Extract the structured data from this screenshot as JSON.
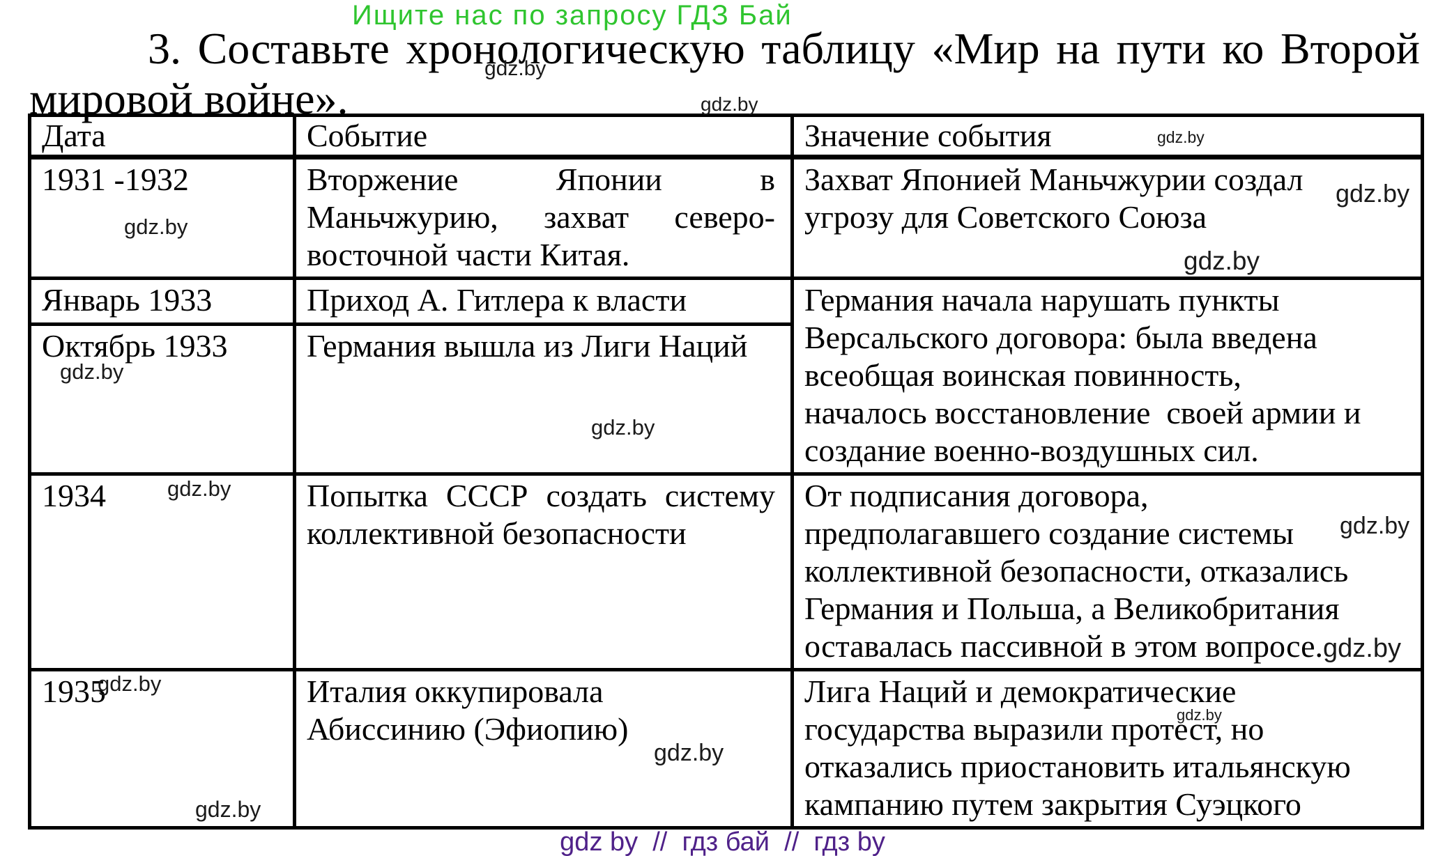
{
  "banner": {
    "text": "Ищите нас по запросу ГДЗ Бай"
  },
  "title": {
    "lines": [
      "3. Составьте хронологическую таблицу «Мир на пути ко Второй",
      "мировой войне»."
    ]
  },
  "table": {
    "headers": [
      "Дата",
      "Событие",
      "Значение события"
    ],
    "rows": [
      {
        "date": "1931 -1932",
        "event": [
          "Вторжение Японии в",
          "Маньчжурию, захват северо-",
          "восточной части Китая."
        ],
        "meaning": [
          "Захват Японией Маньчжурии создал",
          "угрозу для Советского Союза"
        ]
      },
      {
        "date": "Январь 1933",
        "event": [
          "Приход А. Гитлера к власти"
        ],
        "meaning": [
          "Германия начала нарушать пункты",
          "Версальского договора: была введена",
          "всеобщая воинская повинность,",
          "началось восстановление  своей армии и",
          "создание военно-воздушных сил."
        ]
      },
      {
        "date": "Октябрь 1933",
        "event": [
          "Германия вышла из Лиги Наций"
        ]
      },
      {
        "date": "1934",
        "event": [
          "Попытка СССР создать систему",
          "коллективной безопасности"
        ],
        "meaning": [
          "От подписания договора,",
          "предполагавшего создание системы",
          "коллективной безопасности, отказались",
          "Германия и Польша, а Великобритания",
          "оставалась пассивной в этом вопросе."
        ]
      },
      {
        "date": "1935",
        "event": [
          "Италия оккупировала",
          "Абиссинию (Эфиопию)"
        ],
        "meaning": [
          "Лига Наций и демократические",
          "государства выразили протест, но",
          "отказались приостановить итальянскую",
          "кампанию путем закрытия Суэцкого"
        ]
      }
    ]
  },
  "watermark_text": "gdz.by",
  "footer": {
    "text": "gdz by  //  гдз бай  //  гдз by"
  },
  "colors": {
    "banner_green": "#2fc52f",
    "footer_purple": "#4f2189",
    "body_text": "#000000"
  }
}
